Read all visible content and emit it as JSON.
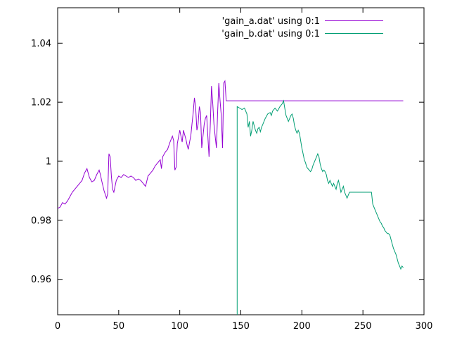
{
  "chart_data": {
    "type": "line",
    "title": "",
    "xlabel": "",
    "ylabel": "",
    "xlim": [
      0,
      300
    ],
    "ylim": [
      0.948,
      1.052
    ],
    "xticks": {
      "values": [
        0,
        50,
        100,
        150,
        200,
        250,
        300
      ],
      "labels": [
        "0",
        "50",
        "100",
        "150",
        "200",
        "250",
        "300"
      ]
    },
    "yticks": {
      "values": [
        0.96,
        0.98,
        1.0,
        1.02,
        1.04
      ],
      "labels": [
        "0.96",
        "0.98",
        "1",
        "1.02",
        "1.04"
      ]
    },
    "grid": false,
    "legend_position": "top-right",
    "background": "#ffffff",
    "axis_color": "#000000",
    "series": [
      {
        "name": "'gain_a.dat' using 0:1",
        "color": "#9400d3",
        "points": [
          [
            0,
            0.984
          ],
          [
            2,
            0.9845
          ],
          [
            4,
            0.986
          ],
          [
            6,
            0.9855
          ],
          [
            8,
            0.9865
          ],
          [
            10,
            0.988
          ],
          [
            12,
            0.9895
          ],
          [
            14,
            0.9905
          ],
          [
            16,
            0.9915
          ],
          [
            18,
            0.9925
          ],
          [
            20,
            0.9935
          ],
          [
            22,
            0.996
          ],
          [
            24,
            0.9975
          ],
          [
            25,
            0.996
          ],
          [
            26,
            0.9945
          ],
          [
            28,
            0.993
          ],
          [
            30,
            0.9935
          ],
          [
            32,
            0.9955
          ],
          [
            34,
            0.997
          ],
          [
            35,
            0.9955
          ],
          [
            36,
            0.9935
          ],
          [
            38,
            0.99
          ],
          [
            40,
            0.9875
          ],
          [
            41,
            0.989
          ],
          [
            42,
            1.0025
          ],
          [
            43,
            1.0015
          ],
          [
            44,
            0.995
          ],
          [
            45,
            0.9905
          ],
          [
            46,
            0.9895
          ],
          [
            48,
            0.9935
          ],
          [
            50,
            0.995
          ],
          [
            52,
            0.9945
          ],
          [
            54,
            0.9955
          ],
          [
            56,
            0.995
          ],
          [
            58,
            0.9945
          ],
          [
            60,
            0.995
          ],
          [
            62,
            0.9945
          ],
          [
            64,
            0.9935
          ],
          [
            66,
            0.994
          ],
          [
            68,
            0.9935
          ],
          [
            70,
            0.9925
          ],
          [
            72,
            0.9915
          ],
          [
            74,
            0.995
          ],
          [
            76,
            0.996
          ],
          [
            78,
            0.997
          ],
          [
            80,
            0.9985
          ],
          [
            82,
            0.9995
          ],
          [
            84,
            1.0005
          ],
          [
            85,
            0.9975
          ],
          [
            86,
            1.0015
          ],
          [
            88,
            1.003
          ],
          [
            90,
            1.004
          ],
          [
            92,
            1.0065
          ],
          [
            94,
            1.0085
          ],
          [
            95,
            1.007
          ],
          [
            96,
            0.997
          ],
          [
            97,
            0.998
          ],
          [
            98,
            1.006
          ],
          [
            100,
            1.0105
          ],
          [
            101,
            1.0085
          ],
          [
            102,
            1.0065
          ],
          [
            103,
            1.0105
          ],
          [
            104,
            1.009
          ],
          [
            105,
            1.0075
          ],
          [
            106,
            1.0055
          ],
          [
            107,
            1.004
          ],
          [
            108,
            1.0065
          ],
          [
            109,
            1.0085
          ],
          [
            110,
            1.0125
          ],
          [
            111,
            1.0165
          ],
          [
            112,
            1.0215
          ],
          [
            113,
            1.0185
          ],
          [
            114,
            1.0105
          ],
          [
            115,
            1.0125
          ],
          [
            116,
            1.0185
          ],
          [
            117,
            1.0165
          ],
          [
            118,
            1.0045
          ],
          [
            119,
            1.0085
          ],
          [
            120,
            1.0125
          ],
          [
            121,
            1.0145
          ],
          [
            122,
            1.0155
          ],
          [
            123,
            1.0085
          ],
          [
            124,
            1.0015
          ],
          [
            125,
            1.0125
          ],
          [
            126,
            1.0255
          ],
          [
            127,
            1.0195
          ],
          [
            128,
            1.0125
          ],
          [
            129,
            1.0085
          ],
          [
            130,
            1.0045
          ],
          [
            131,
            1.0165
          ],
          [
            132,
            1.0265
          ],
          [
            133,
            1.0205
          ],
          [
            134,
            1.0155
          ],
          [
            135,
            1.0045
          ],
          [
            136,
            1.0265
          ],
          [
            137,
            1.0272
          ],
          [
            138,
            1.0205
          ],
          [
            142,
            1.0205
          ],
          [
            283,
            1.0205
          ]
        ]
      },
      {
        "name": "'gain_b.dat' using 0:1",
        "color": "#009e73",
        "points": [
          [
            147,
            0.948
          ],
          [
            147,
            1.0185
          ],
          [
            149,
            1.018
          ],
          [
            151,
            1.0175
          ],
          [
            153,
            1.018
          ],
          [
            155,
            1.016
          ],
          [
            156,
            1.0115
          ],
          [
            157,
            1.0135
          ],
          [
            158,
            1.0085
          ],
          [
            159,
            1.0105
          ],
          [
            160,
            1.0135
          ],
          [
            161,
            1.012
          ],
          [
            162,
            1.0105
          ],
          [
            163,
            1.0095
          ],
          [
            164,
            1.011
          ],
          [
            165,
            1.0115
          ],
          [
            166,
            1.01
          ],
          [
            167,
            1.0115
          ],
          [
            168,
            1.0125
          ],
          [
            170,
            1.0145
          ],
          [
            172,
            1.016
          ],
          [
            174,
            1.0165
          ],
          [
            175,
            1.0155
          ],
          [
            176,
            1.017
          ],
          [
            178,
            1.018
          ],
          [
            180,
            1.017
          ],
          [
            182,
            1.0185
          ],
          [
            184,
            1.0195
          ],
          [
            185,
            1.0205
          ],
          [
            186,
            1.018
          ],
          [
            187,
            1.0155
          ],
          [
            188,
            1.0145
          ],
          [
            189,
            1.0135
          ],
          [
            190,
            1.0145
          ],
          [
            191,
            1.0155
          ],
          [
            192,
            1.016
          ],
          [
            193,
            1.0145
          ],
          [
            194,
            1.012
          ],
          [
            195,
            1.0105
          ],
          [
            196,
            1.0095
          ],
          [
            197,
            1.0105
          ],
          [
            198,
            1.0095
          ],
          [
            199,
            1.007
          ],
          [
            200,
            1.0045
          ],
          [
            201,
            1.0025
          ],
          [
            202,
            1.0005
          ],
          [
            203,
            0.9995
          ],
          [
            204,
            0.998
          ],
          [
            205,
            0.9975
          ],
          [
            206,
            0.997
          ],
          [
            207,
            0.9965
          ],
          [
            208,
            0.997
          ],
          [
            209,
            0.9985
          ],
          [
            210,
            0.9995
          ],
          [
            211,
            1.0005
          ],
          [
            212,
            1.0015
          ],
          [
            213,
            1.0025
          ],
          [
            214,
            1.0015
          ],
          [
            215,
            0.999
          ],
          [
            216,
            0.9975
          ],
          [
            217,
            0.9965
          ],
          [
            218,
            0.997
          ],
          [
            219,
            0.9965
          ],
          [
            220,
            0.9955
          ],
          [
            221,
            0.9935
          ],
          [
            222,
            0.9925
          ],
          [
            223,
            0.9935
          ],
          [
            224,
            0.9925
          ],
          [
            225,
            0.9915
          ],
          [
            226,
            0.9925
          ],
          [
            227,
            0.9915
          ],
          [
            228,
            0.9905
          ],
          [
            229,
            0.9925
          ],
          [
            230,
            0.9935
          ],
          [
            231,
            0.9915
          ],
          [
            232,
            0.9895
          ],
          [
            233,
            0.9905
          ],
          [
            234,
            0.9915
          ],
          [
            235,
            0.9895
          ],
          [
            236,
            0.9885
          ],
          [
            237,
            0.9875
          ],
          [
            238,
            0.9885
          ],
          [
            239,
            0.9895
          ],
          [
            240,
            0.9895
          ],
          [
            257,
            0.9895
          ],
          [
            258,
            0.9855
          ],
          [
            259,
            0.9845
          ],
          [
            260,
            0.9835
          ],
          [
            261,
            0.9825
          ],
          [
            262,
            0.9815
          ],
          [
            263,
            0.9805
          ],
          [
            264,
            0.9795
          ],
          [
            265,
            0.979
          ],
          [
            266,
            0.978
          ],
          [
            267,
            0.9775
          ],
          [
            268,
            0.9765
          ],
          [
            269,
            0.976
          ],
          [
            270,
            0.9755
          ],
          [
            271,
            0.9755
          ],
          [
            272,
            0.975
          ],
          [
            273,
            0.9735
          ],
          [
            274,
            0.972
          ],
          [
            275,
            0.9705
          ],
          [
            276,
            0.9695
          ],
          [
            277,
            0.9685
          ],
          [
            278,
            0.967
          ],
          [
            279,
            0.9655
          ],
          [
            280,
            0.9645
          ],
          [
            281,
            0.9635
          ],
          [
            282,
            0.9645
          ],
          [
            283,
            0.964
          ]
        ]
      }
    ]
  }
}
